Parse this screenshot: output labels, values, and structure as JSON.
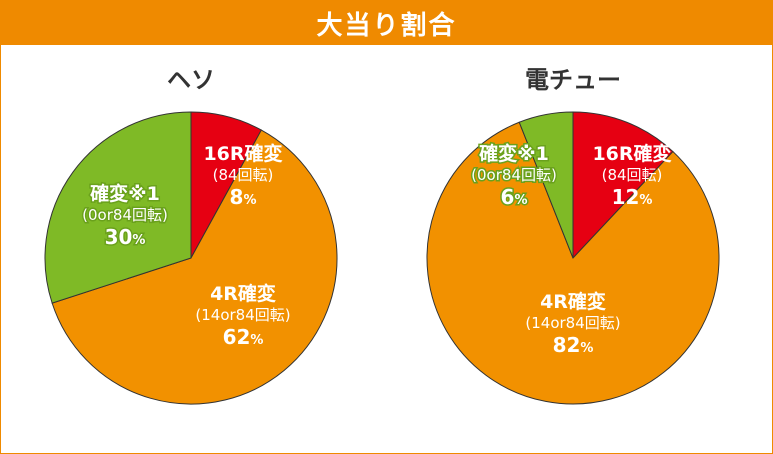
{
  "header": {
    "title": "大当り割合"
  },
  "colors": {
    "red": "#e60012",
    "orange": "#f29100",
    "green": "#7fba26",
    "header": "#ef8a00"
  },
  "chart_data": [
    {
      "type": "pie",
      "title": "ヘソ",
      "slices": [
        {
          "name": "16R確変",
          "detail": "(84回転)",
          "value": 8,
          "label": "8",
          "unit": "%",
          "color": "#e60012"
        },
        {
          "name": "4R確変",
          "detail": "(14or84回転)",
          "value": 62,
          "label": "62",
          "unit": "%",
          "color": "#f29100"
        },
        {
          "name": "確変※1",
          "detail": "(0or84回転)",
          "value": 30,
          "label": "30",
          "unit": "%",
          "color": "#7fba26"
        }
      ]
    },
    {
      "type": "pie",
      "title": "電チュー",
      "slices": [
        {
          "name": "16R確変",
          "detail": "(84回転)",
          "value": 12,
          "label": "12",
          "unit": "%",
          "color": "#e60012"
        },
        {
          "name": "4R確変",
          "detail": "(14or84回転)",
          "value": 82,
          "label": "82",
          "unit": "%",
          "color": "#f29100"
        },
        {
          "name": "確変※1",
          "detail": "(0or84回転)",
          "value": 6,
          "label": "6",
          "unit": "%",
          "color": "#7fba26"
        }
      ]
    }
  ]
}
